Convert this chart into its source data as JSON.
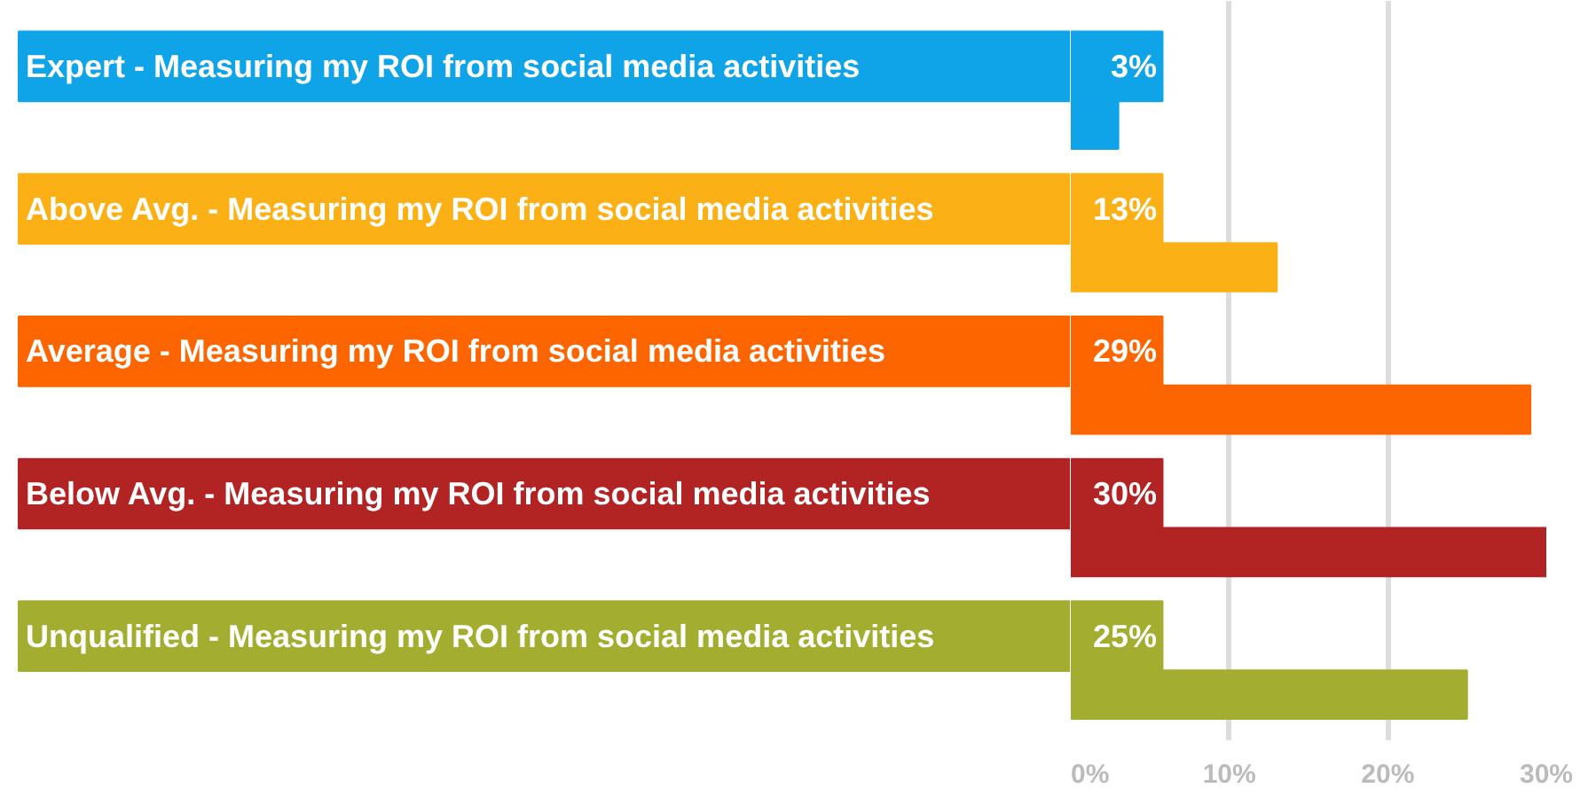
{
  "chart_data": {
    "type": "bar",
    "orientation": "horizontal",
    "categories": [
      "Expert - Measuring my ROI from social media activities",
      "Above Avg. - Measuring my ROI from social media activities",
      "Average - Measuring my ROI from social media activities",
      "Below Avg. - Measuring my ROI from social media activities",
      "Unqualified - Measuring my ROI from social media activities"
    ],
    "values": [
      3,
      13,
      29,
      30,
      25
    ],
    "value_labels": [
      "3%",
      "13%",
      "29%",
      "30%",
      "25%"
    ],
    "colors": [
      "#0fa3e8",
      "#fbb116",
      "#fd6501",
      "#b22324",
      "#a3ad2f"
    ],
    "xticks": [
      {
        "value": 0,
        "label": "0%"
      },
      {
        "value": 10,
        "label": "10%"
      },
      {
        "value": 20,
        "label": "20%"
      },
      {
        "value": 30,
        "label": "30%"
      }
    ],
    "xlim": [
      0,
      30
    ],
    "grid": "x"
  }
}
